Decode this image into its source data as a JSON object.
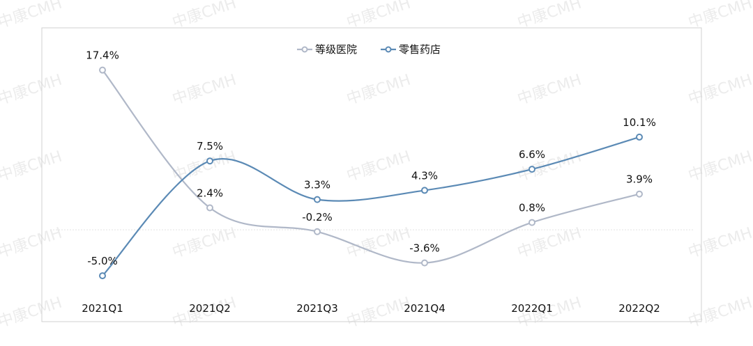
{
  "watermark": "中康CMH",
  "colors": {
    "hospital": "#b0b8c8",
    "pharmacy": "#5b8ab5",
    "frame": "#d0d0d0",
    "zero_line": "#e2e2e2"
  },
  "chart_data": {
    "type": "line",
    "smooth": true,
    "title": "",
    "xlabel": "",
    "ylabel": "",
    "ylim": [
      -10,
      22
    ],
    "grid": false,
    "legend": "top-center",
    "categories": [
      "2021Q1",
      "2021Q2",
      "2021Q3",
      "2021Q4",
      "2022Q1",
      "2022Q2"
    ],
    "series": [
      {
        "name": "等级医院",
        "values": [
          17.4,
          2.4,
          -0.2,
          -3.6,
          0.8,
          3.9
        ],
        "labels": [
          "17.4%",
          "2.4%",
          "-0.2%",
          "-3.6%",
          "0.8%",
          "3.9%"
        ]
      },
      {
        "name": "零售药店",
        "values": [
          -5.0,
          7.5,
          3.3,
          4.3,
          6.6,
          10.1
        ],
        "labels": [
          "-5.0%",
          "7.5%",
          "3.3%",
          "4.3%",
          "6.6%",
          "10.1%"
        ]
      }
    ]
  }
}
